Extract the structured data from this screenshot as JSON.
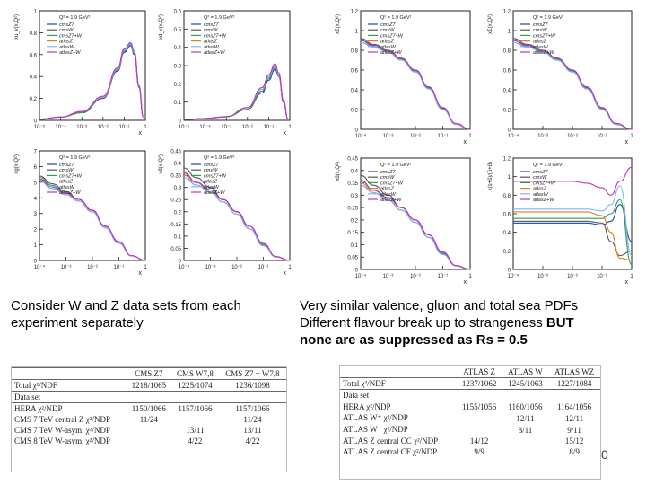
{
  "chart_data": [
    {
      "type": "line",
      "panel": "xuv",
      "ylabel": "xu_v(x,Q²)",
      "xlabel": "x",
      "q2_label": "Q² = 1.9 GeV²",
      "log_x": true,
      "ylim": [
        0,
        1
      ],
      "x_ticks": [
        "10⁻⁵",
        "10⁻⁴",
        "10⁻³",
        "10⁻²",
        "10⁻¹",
        "1"
      ],
      "y_ticks": [
        {
          "v": 0,
          "t": "0"
        },
        {
          "v": 0.2,
          "t": "0.2"
        },
        {
          "v": 0.4,
          "t": "0.4"
        },
        {
          "v": 0.6,
          "t": "0.6"
        },
        {
          "v": 0.8,
          "t": "0.8"
        },
        {
          "v": 1,
          "t": "1"
        }
      ],
      "x": [
        1e-05,
        0.0001,
        0.001,
        0.01,
        0.05,
        0.1,
        0.2,
        0.3,
        0.5,
        0.8
      ],
      "series": [
        {
          "name": "cmsZ7",
          "color": "#1f3fbf",
          "values": [
            0.01,
            0.03,
            0.07,
            0.2,
            0.45,
            0.62,
            0.68,
            0.6,
            0.3,
            0.03
          ]
        },
        {
          "name": "cmsW",
          "color": "#555555",
          "values": [
            0.01,
            0.03,
            0.07,
            0.2,
            0.46,
            0.63,
            0.69,
            0.61,
            0.3,
            0.03
          ]
        },
        {
          "name": "cmsZ7+W",
          "color": "#2f9f4f",
          "values": [
            0.01,
            0.03,
            0.07,
            0.21,
            0.46,
            0.63,
            0.69,
            0.61,
            0.31,
            0.03
          ]
        },
        {
          "name": "atlasZ",
          "color": "#e08020",
          "values": [
            0.01,
            0.03,
            0.08,
            0.21,
            0.47,
            0.64,
            0.7,
            0.62,
            0.31,
            0.03
          ]
        },
        {
          "name": "atlasW",
          "color": "#7fb0ff",
          "values": [
            0.01,
            0.03,
            0.08,
            0.21,
            0.47,
            0.64,
            0.7,
            0.62,
            0.31,
            0.03
          ]
        },
        {
          "name": "atlasZ+W",
          "color": "#c030c0",
          "values": [
            0.01,
            0.03,
            0.08,
            0.22,
            0.48,
            0.65,
            0.71,
            0.63,
            0.32,
            0.03
          ]
        }
      ]
    },
    {
      "type": "line",
      "panel": "xdv",
      "ylabel": "xd_v(x,Q²)",
      "xlabel": "x",
      "q2_label": "Q² = 1.9 GeV²",
      "log_x": true,
      "ylim": [
        0,
        0.6
      ],
      "x_ticks": [
        "10⁻⁵",
        "10⁻⁴",
        "10⁻³",
        "10⁻²",
        "10⁻¹",
        "1"
      ],
      "y_ticks": [
        {
          "v": 0,
          "t": "0"
        },
        {
          "v": 0.1,
          "t": "0.1"
        },
        {
          "v": 0.2,
          "t": "0.2"
        },
        {
          "v": 0.3,
          "t": "0.3"
        },
        {
          "v": 0.4,
          "t": "0.4"
        },
        {
          "v": 0.5,
          "t": "0.5"
        },
        {
          "v": 0.6,
          "t": "0.6"
        }
      ],
      "x": [
        1e-05,
        0.0001,
        0.001,
        0.01,
        0.05,
        0.1,
        0.2,
        0.3,
        0.5,
        0.8
      ],
      "series": [
        {
          "name": "cmsZ7",
          "color": "#1f3fbf",
          "values": [
            0.005,
            0.01,
            0.02,
            0.06,
            0.15,
            0.22,
            0.28,
            0.24,
            0.1,
            0.01
          ]
        },
        {
          "name": "cmsW",
          "color": "#555555",
          "values": [
            0.005,
            0.01,
            0.02,
            0.06,
            0.16,
            0.23,
            0.29,
            0.25,
            0.1,
            0.01
          ]
        },
        {
          "name": "cmsZ7+W",
          "color": "#2f9f4f",
          "values": [
            0.005,
            0.01,
            0.02,
            0.06,
            0.16,
            0.23,
            0.29,
            0.25,
            0.11,
            0.01
          ]
        },
        {
          "name": "atlasZ",
          "color": "#e08020",
          "values": [
            0.005,
            0.01,
            0.02,
            0.07,
            0.17,
            0.24,
            0.3,
            0.25,
            0.11,
            0.01
          ]
        },
        {
          "name": "atlasW",
          "color": "#7fb0ff",
          "values": [
            0.005,
            0.01,
            0.02,
            0.07,
            0.17,
            0.24,
            0.3,
            0.25,
            0.11,
            0.01
          ]
        },
        {
          "name": "atlasZ+W",
          "color": "#c030c0",
          "values": [
            0.005,
            0.01,
            0.02,
            0.07,
            0.18,
            0.25,
            0.31,
            0.26,
            0.11,
            0.01
          ]
        }
      ]
    },
    {
      "type": "line",
      "panel": "xsea",
      "ylabel": "xΣ(x,Q²)",
      "xlabel": "x",
      "q2_label": "Q² = 1.9 GeV²",
      "log_x": true,
      "ylim": [
        0,
        1.2
      ],
      "x_ticks": [
        "10⁻⁴",
        "10⁻³",
        "10⁻²",
        "10⁻¹",
        "1"
      ],
      "y_ticks": [
        {
          "v": 0,
          "t": "0"
        },
        {
          "v": 0.2,
          "t": "0.2"
        },
        {
          "v": 0.4,
          "t": "0.4"
        },
        {
          "v": 0.6,
          "t": "0.6"
        },
        {
          "v": 0.8,
          "t": "0.8"
        },
        {
          "v": 1,
          "t": "1"
        },
        {
          "v": 1.2,
          "t": "1.2"
        }
      ],
      "x": [
        0.0001,
        0.0003,
        0.001,
        0.003,
        0.01,
        0.03,
        0.1,
        0.3,
        1
      ],
      "series": [
        {
          "name": "cmsZ7",
          "color": "#1f3fbf",
          "values": [
            0.9,
            0.85,
            0.8,
            0.72,
            0.6,
            0.43,
            0.22,
            0.05,
            0.0
          ]
        },
        {
          "name": "cmsW",
          "color": "#555555",
          "values": [
            0.92,
            0.86,
            0.8,
            0.72,
            0.6,
            0.42,
            0.21,
            0.05,
            0.0
          ]
        },
        {
          "name": "cmsZ7+W",
          "color": "#2f9f4f",
          "values": [
            0.9,
            0.84,
            0.79,
            0.71,
            0.59,
            0.42,
            0.21,
            0.05,
            0.0
          ]
        },
        {
          "name": "atlasZ",
          "color": "#e08020",
          "values": [
            0.88,
            0.83,
            0.78,
            0.7,
            0.58,
            0.41,
            0.2,
            0.05,
            0.0
          ]
        },
        {
          "name": "atlasW",
          "color": "#7fb0ff",
          "values": [
            0.88,
            0.83,
            0.78,
            0.7,
            0.58,
            0.41,
            0.2,
            0.05,
            0.0
          ]
        },
        {
          "name": "atlasZ+W",
          "color": "#c030c0",
          "values": [
            0.9,
            0.85,
            0.8,
            0.72,
            0.6,
            0.43,
            0.22,
            0.06,
            0.0
          ]
        }
      ]
    },
    {
      "type": "line",
      "panel": "xg",
      "ylabel": "xg(x,Q²)",
      "xlabel": "x",
      "q2_label": "Q² = 1.9 GeV²",
      "log_x": true,
      "ylim": [
        0,
        7
      ],
      "x_ticks": [
        "10⁻⁴",
        "10⁻³",
        "10⁻²",
        "10⁻¹",
        "1"
      ],
      "y_ticks": [
        {
          "v": 0,
          "t": "0"
        },
        {
          "v": 1,
          "t": "1"
        },
        {
          "v": 2,
          "t": "2"
        },
        {
          "v": 3,
          "t": "3"
        },
        {
          "v": 4,
          "t": "4"
        },
        {
          "v": 5,
          "t": "5"
        },
        {
          "v": 6,
          "t": "6"
        },
        {
          "v": 7,
          "t": "7"
        }
      ],
      "x": [
        0.0001,
        0.0003,
        0.001,
        0.003,
        0.01,
        0.03,
        0.1,
        0.3,
        1
      ],
      "series": [
        {
          "name": "cmsZ7",
          "color": "#1f3fbf",
          "values": [
            5.2,
            4.7,
            4.3,
            3.9,
            3.2,
            2.2,
            1.2,
            0.3,
            0.0
          ]
        },
        {
          "name": "cmsW",
          "color": "#555555",
          "values": [
            5.4,
            4.9,
            4.4,
            3.9,
            3.2,
            2.2,
            1.1,
            0.3,
            0.0
          ]
        },
        {
          "name": "cmsZ7+W",
          "color": "#2f9f4f",
          "values": [
            5.3,
            4.8,
            4.3,
            3.8,
            3.1,
            2.1,
            1.1,
            0.3,
            0.0
          ]
        },
        {
          "name": "atlasZ",
          "color": "#e08020",
          "values": [
            5.1,
            4.6,
            4.2,
            3.8,
            3.1,
            2.1,
            1.1,
            0.3,
            0.0
          ]
        },
        {
          "name": "atlasW",
          "color": "#7fb0ff",
          "values": [
            5.1,
            4.6,
            4.2,
            3.8,
            3.1,
            2.1,
            1.1,
            0.3,
            0.0
          ]
        },
        {
          "name": "atlasZ+W",
          "color": "#c030c0",
          "values": [
            5.2,
            4.7,
            4.3,
            3.9,
            3.2,
            2.2,
            1.2,
            0.3,
            0.0
          ]
        }
      ]
    },
    {
      "type": "line",
      "panel": "xdbar",
      "ylabel": "xd̄(x,Q²)",
      "xlabel": "x",
      "q2_label": "Q² = 1.9 GeV²",
      "log_x": true,
      "ylim": [
        0,
        0.45
      ],
      "x_ticks": [
        "10⁻⁴",
        "10⁻³",
        "10⁻²",
        "10⁻¹",
        "1"
      ],
      "y_ticks": [
        {
          "v": 0,
          "t": "0"
        },
        {
          "v": 0.05,
          "t": "0.05"
        },
        {
          "v": 0.1,
          "t": "0.1"
        },
        {
          "v": 0.15,
          "t": "0.15"
        },
        {
          "v": 0.2,
          "t": "0.2"
        },
        {
          "v": 0.25,
          "t": "0.25"
        },
        {
          "v": 0.3,
          "t": "0.3"
        },
        {
          "v": 0.35,
          "t": "0.35"
        },
        {
          "v": 0.4,
          "t": "0.4"
        },
        {
          "v": 0.45,
          "t": "0.45"
        }
      ],
      "x": [
        0.0001,
        0.0003,
        0.001,
        0.003,
        0.01,
        0.03,
        0.1,
        0.3,
        1
      ],
      "series": [
        {
          "name": "cmsZ7",
          "color": "#1f3fbf",
          "values": [
            0.36,
            0.32,
            0.29,
            0.25,
            0.2,
            0.14,
            0.07,
            0.015,
            0.0
          ]
        },
        {
          "name": "cmsW",
          "color": "#555555",
          "values": [
            0.38,
            0.34,
            0.3,
            0.25,
            0.2,
            0.13,
            0.065,
            0.015,
            0.0
          ]
        },
        {
          "name": "cmsZ7+W",
          "color": "#2f9f4f",
          "values": [
            0.36,
            0.32,
            0.28,
            0.24,
            0.19,
            0.13,
            0.065,
            0.015,
            0.0
          ]
        },
        {
          "name": "atlasZ",
          "color": "#e08020",
          "values": [
            0.35,
            0.31,
            0.28,
            0.24,
            0.19,
            0.13,
            0.06,
            0.015,
            0.0
          ]
        },
        {
          "name": "atlasW",
          "color": "#7fb0ff",
          "values": [
            0.34,
            0.31,
            0.28,
            0.24,
            0.19,
            0.13,
            0.06,
            0.015,
            0.0
          ]
        },
        {
          "name": "atlasZ+W",
          "color": "#c030c0",
          "values": [
            0.36,
            0.32,
            0.29,
            0.25,
            0.2,
            0.14,
            0.07,
            0.016,
            0.0
          ]
        }
      ]
    },
    {
      "type": "line",
      "panel": "rs",
      "ylabel": "x(s+s̄)/(ū+d̄)",
      "xlabel": "x",
      "q2_label": "Q² = 1.9 GeV²",
      "log_x": true,
      "ylim": [
        0,
        1.2
      ],
      "x_ticks": [
        "10⁻⁴",
        "10⁻³",
        "10⁻²",
        "10⁻¹",
        "1"
      ],
      "y_ticks": [
        {
          "v": 0,
          "t": "0"
        },
        {
          "v": 0.2,
          "t": "0.2"
        },
        {
          "v": 0.4,
          "t": "0.4"
        },
        {
          "v": 0.6,
          "t": "0.6"
        },
        {
          "v": 0.8,
          "t": "0.8"
        },
        {
          "v": 1,
          "t": "1"
        },
        {
          "v": 1.2,
          "t": "1.2"
        }
      ],
      "x": [
        0.0001,
        0.0003,
        0.001,
        0.003,
        0.01,
        0.03,
        0.1,
        0.2,
        0.4,
        1
      ],
      "series": [
        {
          "name": "cmsZ7",
          "color": "#1f3fbf",
          "values": [
            0.5,
            0.5,
            0.5,
            0.5,
            0.5,
            0.5,
            0.48,
            0.52,
            0.7,
            0.3
          ]
        },
        {
          "name": "cmsW",
          "color": "#555555",
          "values": [
            0.52,
            0.52,
            0.52,
            0.52,
            0.52,
            0.52,
            0.5,
            0.3,
            0.15,
            0.2
          ]
        },
        {
          "name": "cmsZ7+W",
          "color": "#2f9f4f",
          "values": [
            0.55,
            0.55,
            0.55,
            0.55,
            0.55,
            0.55,
            0.55,
            0.6,
            0.75,
            0.05
          ]
        },
        {
          "name": "atlasZ",
          "color": "#e08020",
          "values": [
            0.62,
            0.62,
            0.62,
            0.62,
            0.62,
            0.62,
            0.58,
            0.4,
            0.12,
            0.1
          ]
        },
        {
          "name": "atlasW",
          "color": "#7fb0ff",
          "values": [
            0.65,
            0.65,
            0.65,
            0.65,
            0.65,
            0.65,
            0.63,
            0.7,
            0.9,
            0.15
          ]
        },
        {
          "name": "atlasZ+W",
          "color": "#c030c0",
          "values": [
            0.95,
            0.95,
            0.95,
            0.95,
            0.95,
            0.93,
            0.88,
            0.8,
            0.95,
            1.1
          ]
        }
      ]
    }
  ],
  "captions": {
    "left_line1": "Consider W and Z data sets from each",
    "left_line2": "experiment separately",
    "right_line1": "Very similar valence, gluon and total sea PDFs",
    "right_line2_pre": "Different flavour break up to strangeness ",
    "right_line2_bold": "BUT",
    "right_line3": "none are as suppressed as Rs = 0.5"
  },
  "cms_table": {
    "headers": [
      "",
      "CMS Z7",
      "CMS W7,8",
      "CMS Z7 + W7,8"
    ],
    "rows": [
      [
        "Total χ²/NDF",
        "1218/1065",
        "1225/1074",
        "1236/1098"
      ],
      [
        "Data set",
        "",
        "",
        ""
      ],
      [
        "HERA χ²/NDP",
        "1150/1066",
        "1157/1066",
        "1157/1066"
      ],
      [
        "CMS 7 TeV central Z χ²/NDP",
        "11/24",
        "",
        "11/24"
      ],
      [
        "CMS 7 TeV W-asym. χ²/NDP",
        "",
        "13/11",
        "13/11"
      ],
      [
        "CMS 8 TeV W-asym. χ²/NDP",
        "",
        "4/22",
        "4/22"
      ]
    ]
  },
  "atlas_table": {
    "headers": [
      "",
      "ATLAS Z",
      "ATLAS W",
      "ATLAS WZ"
    ],
    "rows": [
      [
        "Total χ²/NDF",
        "1237/1062",
        "1245/1063",
        "1227/1084"
      ],
      [
        "Data set",
        "",
        "",
        ""
      ],
      [
        "HERA χ²/NDP",
        "1155/1056",
        "1160/1056",
        "1164/1056"
      ],
      [
        "ATLAS W⁺ χ²/NDP",
        "",
        "12/11",
        "12/11"
      ],
      [
        "ATLAS W⁻ χ²/NDP",
        "",
        "8/11",
        "9/11"
      ],
      [
        "ATLAS Z central CC χ²/NDP",
        "14/12",
        "",
        "15/12"
      ],
      [
        "ATLAS Z central CF χ²/NDP",
        "9/9",
        "",
        "8/9"
      ]
    ]
  },
  "page_number": "0"
}
